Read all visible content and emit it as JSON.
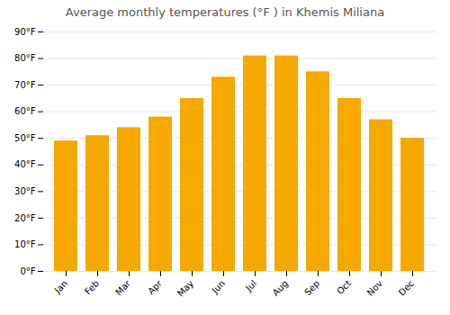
{
  "chart_data": {
    "type": "bar",
    "title": "Average monthly temperatures (°F ) in Khemis Miliana",
    "categories": [
      "Jan",
      "Feb",
      "Mar",
      "Apr",
      "May",
      "Jun",
      "Jul",
      "Aug",
      "Sep",
      "Oct",
      "Nov",
      "Dec"
    ],
    "values": [
      49,
      51,
      54,
      58,
      65,
      73,
      81,
      81,
      75,
      65,
      57,
      50
    ],
    "color": "#F5A800",
    "ylim": [
      0,
      90
    ],
    "yticks": [
      {
        "value": 0,
        "label": "0°F"
      },
      {
        "value": 10,
        "label": "10°F"
      },
      {
        "value": 20,
        "label": "20°F"
      },
      {
        "value": 30,
        "label": "30°F"
      },
      {
        "value": 40,
        "label": "40°F"
      },
      {
        "value": 50,
        "label": "50°F"
      },
      {
        "value": 60,
        "label": "60°F"
      },
      {
        "value": 70,
        "label": "70°F"
      },
      {
        "value": 80,
        "label": "80°F"
      },
      {
        "value": 90,
        "label": "90°F"
      }
    ],
    "grid": true
  }
}
